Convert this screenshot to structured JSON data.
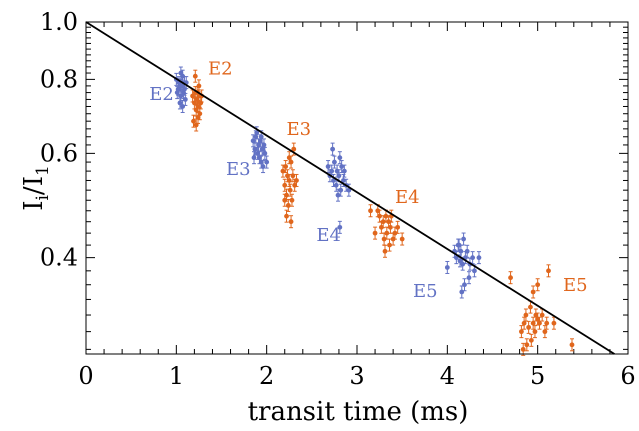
{
  "chart_data": {
    "type": "scatter",
    "title": "",
    "xlabel": "transit time (ms)",
    "ylabel_main": "I",
    "ylabel_sub_top": "i",
    "ylabel_sep": "/I",
    "ylabel_sub_bottom": "1",
    "xlim": [
      0,
      6
    ],
    "ylim": [
      0.275,
      1.0
    ],
    "yscale": "log",
    "xticks": [
      0,
      1,
      2,
      3,
      4,
      5,
      6
    ],
    "xtick_labels": [
      "0",
      "1",
      "2",
      "3",
      "4",
      "5",
      "6"
    ],
    "yticks": [
      0.4,
      0.6,
      0.8,
      1.0
    ],
    "ytick_labels": [
      "0.4",
      "0.6",
      "0.8",
      "1.0"
    ],
    "fit_line": {
      "x": [
        0,
        5.85
      ],
      "y": [
        1.0,
        0.275
      ]
    },
    "colors": {
      "blue": "#6272c4",
      "orange": "#e0661c",
      "line": "#000000"
    },
    "series": [
      {
        "name": "E2",
        "color": "#6272c4",
        "points": [
          [
            1.0,
            0.8
          ],
          [
            1.02,
            0.77
          ],
          [
            1.03,
            0.79
          ],
          [
            1.05,
            0.75
          ],
          [
            1.06,
            0.78
          ],
          [
            1.07,
            0.81
          ],
          [
            1.04,
            0.73
          ],
          [
            1.08,
            0.76
          ],
          [
            1.09,
            0.79
          ],
          [
            1.1,
            0.74
          ],
          [
            1.01,
            0.76
          ],
          [
            1.05,
            0.82
          ],
          [
            1.07,
            0.72
          ],
          [
            1.03,
            0.77
          ],
          [
            1.09,
            0.77
          ],
          [
            1.11,
            0.79
          ]
        ]
      },
      {
        "name": "E2",
        "color": "#e0661c",
        "points": [
          [
            1.18,
            0.75
          ],
          [
            1.2,
            0.73
          ],
          [
            1.21,
            0.76
          ],
          [
            1.22,
            0.71
          ],
          [
            1.23,
            0.74
          ],
          [
            1.24,
            0.72
          ],
          [
            1.25,
            0.75
          ],
          [
            1.26,
            0.7
          ],
          [
            1.27,
            0.73
          ],
          [
            1.19,
            0.68
          ],
          [
            1.22,
            0.67
          ],
          [
            1.25,
            0.78
          ],
          [
            1.21,
            0.81
          ],
          [
            1.28,
            0.75
          ],
          [
            1.24,
            0.69
          ],
          [
            1.23,
            0.76
          ]
        ]
      },
      {
        "name": "E3",
        "color": "#6272c4",
        "points": [
          [
            1.85,
            0.63
          ],
          [
            1.87,
            0.61
          ],
          [
            1.88,
            0.64
          ],
          [
            1.9,
            0.6
          ],
          [
            1.91,
            0.62
          ],
          [
            1.92,
            0.59
          ],
          [
            1.93,
            0.63
          ],
          [
            1.94,
            0.58
          ],
          [
            1.95,
            0.61
          ],
          [
            1.96,
            0.57
          ],
          [
            1.98,
            0.6
          ],
          [
            1.89,
            0.65
          ],
          [
            1.97,
            0.62
          ],
          [
            2.0,
            0.58
          ],
          [
            1.86,
            0.59
          ],
          [
            1.94,
            0.64
          ]
        ]
      },
      {
        "name": "E3",
        "color": "#e0661c",
        "points": [
          [
            2.18,
            0.56
          ],
          [
            2.2,
            0.53
          ],
          [
            2.21,
            0.57
          ],
          [
            2.22,
            0.51
          ],
          [
            2.23,
            0.55
          ],
          [
            2.24,
            0.49
          ],
          [
            2.25,
            0.54
          ],
          [
            2.26,
            0.52
          ],
          [
            2.27,
            0.58
          ],
          [
            2.28,
            0.5
          ],
          [
            2.29,
            0.55
          ],
          [
            2.31,
            0.53
          ],
          [
            2.22,
            0.47
          ],
          [
            2.27,
            0.46
          ],
          [
            2.3,
            0.61
          ],
          [
            2.33,
            0.54
          ],
          [
            2.2,
            0.5
          ],
          [
            2.25,
            0.59
          ]
        ]
      },
      {
        "name": "E4",
        "color": "#6272c4",
        "points": [
          [
            2.68,
            0.57
          ],
          [
            2.7,
            0.55
          ],
          [
            2.72,
            0.56
          ],
          [
            2.74,
            0.54
          ],
          [
            2.75,
            0.58
          ],
          [
            2.77,
            0.53
          ],
          [
            2.78,
            0.56
          ],
          [
            2.8,
            0.55
          ],
          [
            2.82,
            0.52
          ],
          [
            2.83,
            0.57
          ],
          [
            2.85,
            0.54
          ],
          [
            2.73,
            0.61
          ],
          [
            2.88,
            0.53
          ],
          [
            2.79,
            0.51
          ],
          [
            2.81,
            0.59
          ],
          [
            2.86,
            0.56
          ],
          [
            2.91,
            0.52
          ],
          [
            2.81,
            0.45
          ]
        ]
      },
      {
        "name": "E4",
        "color": "#e0661c",
        "points": [
          [
            3.15,
            0.48
          ],
          [
            3.2,
            0.44
          ],
          [
            3.25,
            0.47
          ],
          [
            3.27,
            0.45
          ],
          [
            3.29,
            0.46
          ],
          [
            3.3,
            0.43
          ],
          [
            3.32,
            0.47
          ],
          [
            3.33,
            0.44
          ],
          [
            3.35,
            0.46
          ],
          [
            3.37,
            0.45
          ],
          [
            3.4,
            0.43
          ],
          [
            3.42,
            0.44
          ],
          [
            3.38,
            0.47
          ],
          [
            3.5,
            0.43
          ],
          [
            3.31,
            0.41
          ],
          [
            3.45,
            0.45
          ],
          [
            3.23,
            0.48
          ],
          [
            3.36,
            0.42
          ]
        ]
      },
      {
        "name": "E5",
        "color": "#6272c4",
        "points": [
          [
            4.0,
            0.385
          ],
          [
            4.08,
            0.41
          ],
          [
            4.1,
            0.4
          ],
          [
            4.12,
            0.42
          ],
          [
            4.14,
            0.395
          ],
          [
            4.15,
            0.41
          ],
          [
            4.17,
            0.39
          ],
          [
            4.18,
            0.43
          ],
          [
            4.2,
            0.4
          ],
          [
            4.22,
            0.41
          ],
          [
            4.25,
            0.39
          ],
          [
            4.28,
            0.4
          ],
          [
            4.35,
            0.4
          ],
          [
            4.19,
            0.36
          ],
          [
            4.24,
            0.37
          ],
          [
            4.16,
            0.35
          ],
          [
            4.3,
            0.38
          ],
          [
            4.13,
            0.42
          ]
        ]
      },
      {
        "name": "E5",
        "color": "#e0661c",
        "points": [
          [
            4.7,
            0.37
          ],
          [
            4.82,
            0.3
          ],
          [
            4.85,
            0.31
          ],
          [
            4.87,
            0.32
          ],
          [
            4.9,
            0.305
          ],
          [
            4.92,
            0.33
          ],
          [
            4.95,
            0.31
          ],
          [
            4.97,
            0.3
          ],
          [
            4.98,
            0.32
          ],
          [
            5.0,
            0.315
          ],
          [
            5.02,
            0.31
          ],
          [
            5.05,
            0.32
          ],
          [
            5.08,
            0.3
          ],
          [
            5.1,
            0.31
          ],
          [
            4.93,
            0.29
          ],
          [
            4.88,
            0.285
          ],
          [
            5.12,
            0.38
          ],
          [
            5.0,
            0.36
          ],
          [
            5.18,
            0.31
          ],
          [
            5.38,
            0.285
          ],
          [
            4.95,
            0.35
          ],
          [
            4.84,
            0.28
          ]
        ]
      }
    ],
    "annotations": [
      {
        "text": "E2",
        "color": "#6272c4",
        "x": 0.7,
        "y": 0.738
      },
      {
        "text": "E2",
        "color": "#e0661c",
        "x": 1.35,
        "y": 0.815
      },
      {
        "text": "E3",
        "color": "#6272c4",
        "x": 1.55,
        "y": 0.552
      },
      {
        "text": "E3",
        "color": "#e0661c",
        "x": 2.22,
        "y": 0.645
      },
      {
        "text": "E4",
        "color": "#6272c4",
        "x": 2.55,
        "y": 0.427
      },
      {
        "text": "E4",
        "color": "#e0661c",
        "x": 3.42,
        "y": 0.495
      },
      {
        "text": "E5",
        "color": "#6272c4",
        "x": 3.62,
        "y": 0.343
      },
      {
        "text": "E5",
        "color": "#e0661c",
        "x": 5.28,
        "y": 0.351
      }
    ]
  }
}
